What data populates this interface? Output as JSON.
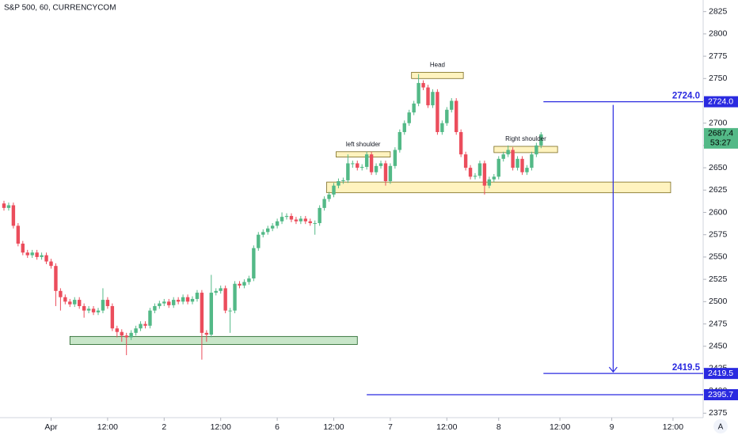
{
  "chart_data": {
    "type": "candlestick",
    "title": "S&P 500, 60, CURRENCYCOM",
    "up_color": "#53b987",
    "down_color": "#eb4d5c",
    "ylim": [
      2370,
      2838
    ],
    "yticks": [
      2375,
      2400,
      2425,
      2450,
      2475,
      2500,
      2525,
      2550,
      2575,
      2600,
      2625,
      2650,
      2675,
      2700,
      2725,
      2750,
      2775,
      2800,
      2825
    ],
    "xlim": [
      -0.84,
      148.4
    ],
    "xticks": [
      {
        "value": 10,
        "label": "Apr"
      },
      {
        "value": 22,
        "label": "12:00"
      },
      {
        "value": 34,
        "label": "2"
      },
      {
        "value": 46,
        "label": "12:00"
      },
      {
        "value": 58,
        "label": "6"
      },
      {
        "value": 70,
        "label": "12:00"
      },
      {
        "value": 82,
        "label": "7"
      },
      {
        "value": 94,
        "label": "12:00"
      },
      {
        "value": 105,
        "label": "8"
      },
      {
        "value": 118,
        "label": "12:00"
      },
      {
        "value": 129,
        "label": "9"
      },
      {
        "value": 142,
        "label": "12:00"
      }
    ],
    "open": [
      2610,
      2605,
      2608,
      2585,
      2565,
      2555,
      2552,
      2555,
      2550,
      2552,
      2545,
      2540,
      2512,
      2505,
      2500,
      2497,
      2502,
      2495,
      2490,
      2492,
      2488,
      2490,
      2502,
      2495,
      2470,
      2466,
      2462,
      2460,
      2465,
      2470,
      2475,
      2473,
      2490,
      2495,
      2498,
      2500,
      2496,
      2502,
      2500,
      2505,
      2500,
      2503,
      2510,
      2465,
      2463,
      2510,
      2512,
      2515,
      2490,
      2490,
      2520,
      2518,
      2522,
      2526,
      2560,
      2575,
      2578,
      2582,
      2585,
      2590,
      2595,
      2596,
      2592,
      2590,
      2593,
      2590,
      2588,
      2588,
      2605,
      2615,
      2620,
      2630,
      2635,
      2636,
      2655,
      2655,
      2650,
      2651,
      2665,
      2645,
      2652,
      2655,
      2635,
      2652,
      2670,
      2690,
      2700,
      2712,
      2722,
      2745,
      2740,
      2720,
      2735,
      2690,
      2700,
      2715,
      2725,
      2690,
      2665,
      2650,
      2640,
      2641,
      2655,
      2630,
      2637,
      2640,
      2660,
      2665,
      2670,
      2650,
      2660,
      2645,
      2650,
      2665,
      2675
    ],
    "high": [
      2613,
      2611,
      2611,
      2588,
      2568,
      2558,
      2558,
      2558,
      2555,
      2555,
      2548,
      2543,
      2515,
      2508,
      2503,
      2505,
      2505,
      2498,
      2495,
      2495,
      2493,
      2515,
      2505,
      2498,
      2473,
      2469,
      2465,
      2468,
      2473,
      2478,
      2478,
      2493,
      2498,
      2501,
      2503,
      2503,
      2505,
      2505,
      2508,
      2508,
      2506,
      2513,
      2513,
      2468,
      2530,
      2515,
      2518,
      2518,
      2493,
      2523,
      2523,
      2525,
      2529,
      2563,
      2578,
      2581,
      2585,
      2588,
      2593,
      2600,
      2599,
      2599,
      2595,
      2596,
      2596,
      2593,
      2591,
      2608,
      2618,
      2623,
      2633,
      2638,
      2639,
      2665,
      2658,
      2658,
      2654,
      2668,
      2668,
      2655,
      2658,
      2658,
      2655,
      2673,
      2693,
      2703,
      2715,
      2725,
      2755,
      2748,
      2743,
      2738,
      2738,
      2703,
      2718,
      2728,
      2728,
      2693,
      2668,
      2653,
      2644,
      2658,
      2658,
      2640,
      2643,
      2663,
      2668,
      2675,
      2673,
      2663,
      2663,
      2653,
      2668,
      2678,
      2690
    ],
    "low": [
      2602,
      2602,
      2582,
      2562,
      2552,
      2549,
      2549,
      2547,
      2547,
      2542,
      2537,
      2495,
      2490,
      2497,
      2494,
      2494,
      2492,
      2482,
      2487,
      2485,
      2485,
      2487,
      2492,
      2467,
      2460,
      2455,
      2440,
      2457,
      2462,
      2467,
      2470,
      2470,
      2487,
      2492,
      2495,
      2493,
      2493,
      2497,
      2497,
      2497,
      2497,
      2500,
      2435,
      2455,
      2460,
      2507,
      2509,
      2487,
      2465,
      2487,
      2515,
      2515,
      2519,
      2523,
      2557,
      2572,
      2575,
      2579,
      2582,
      2587,
      2592,
      2589,
      2587,
      2587,
      2587,
      2585,
      2575,
      2585,
      2602,
      2612,
      2617,
      2627,
      2632,
      2633,
      2650,
      2647,
      2647,
      2648,
      2642,
      2642,
      2649,
      2630,
      2632,
      2649,
      2667,
      2687,
      2697,
      2709,
      2719,
      2737,
      2717,
      2717,
      2687,
      2687,
      2697,
      2712,
      2687,
      2662,
      2647,
      2637,
      2637,
      2638,
      2620,
      2627,
      2634,
      2637,
      2657,
      2662,
      2647,
      2647,
      2642,
      2642,
      2647,
      2662,
      2672
    ],
    "close": [
      2605,
      2608,
      2585,
      2565,
      2555,
      2552,
      2555,
      2550,
      2552,
      2545,
      2540,
      2512,
      2505,
      2500,
      2497,
      2502,
      2495,
      2490,
      2492,
      2488,
      2490,
      2502,
      2495,
      2470,
      2466,
      2462,
      2460,
      2465,
      2470,
      2475,
      2473,
      2490,
      2495,
      2498,
      2500,
      2496,
      2502,
      2500,
      2505,
      2500,
      2503,
      2510,
      2465,
      2463,
      2510,
      2512,
      2515,
      2490,
      2490,
      2520,
      2518,
      2522,
      2526,
      2560,
      2575,
      2578,
      2582,
      2585,
      2590,
      2595,
      2596,
      2592,
      2590,
      2593,
      2590,
      2588,
      2588,
      2605,
      2615,
      2620,
      2630,
      2635,
      2636,
      2655,
      2655,
      2650,
      2651,
      2665,
      2645,
      2652,
      2655,
      2635,
      2652,
      2670,
      2690,
      2700,
      2712,
      2722,
      2745,
      2740,
      2720,
      2735,
      2690,
      2700,
      2715,
      2725,
      2690,
      2665,
      2650,
      2640,
      2641,
      2655,
      2630,
      2637,
      2640,
      2660,
      2665,
      2670,
      2650,
      2660,
      2645,
      2650,
      2665,
      2675,
      2687.4
    ],
    "countdown": "53:27",
    "zones": [
      {
        "low": 2452,
        "high": 2461,
        "color": "#c8e6c9",
        "border": "#1b5e20"
      },
      {
        "low": 2622,
        "high": 2634,
        "color": "#fff3bf",
        "border": "#7a6a1f"
      },
      {
        "low": 2662,
        "high": 2668,
        "color": "#fff3bf",
        "border": "#7a6a1f",
        "label": "left shoulder"
      },
      {
        "low": 2750,
        "high": 2757,
        "color": "#fff3bf",
        "border": "#7a6a1f",
        "label": "Head"
      },
      {
        "low": 2667,
        "high": 2674,
        "color": "#fff3bf",
        "border": "#7a6a1f",
        "label": "Right shoulder"
      }
    ],
    "levels": [
      {
        "value": 2724.0,
        "label": "2724.0"
      },
      {
        "value": 2419.5,
        "label": "2419.5"
      },
      {
        "value": 2395.7,
        "label": "2395.7"
      }
    ],
    "level_color": "#2a2ae0",
    "axis_button": "A"
  }
}
